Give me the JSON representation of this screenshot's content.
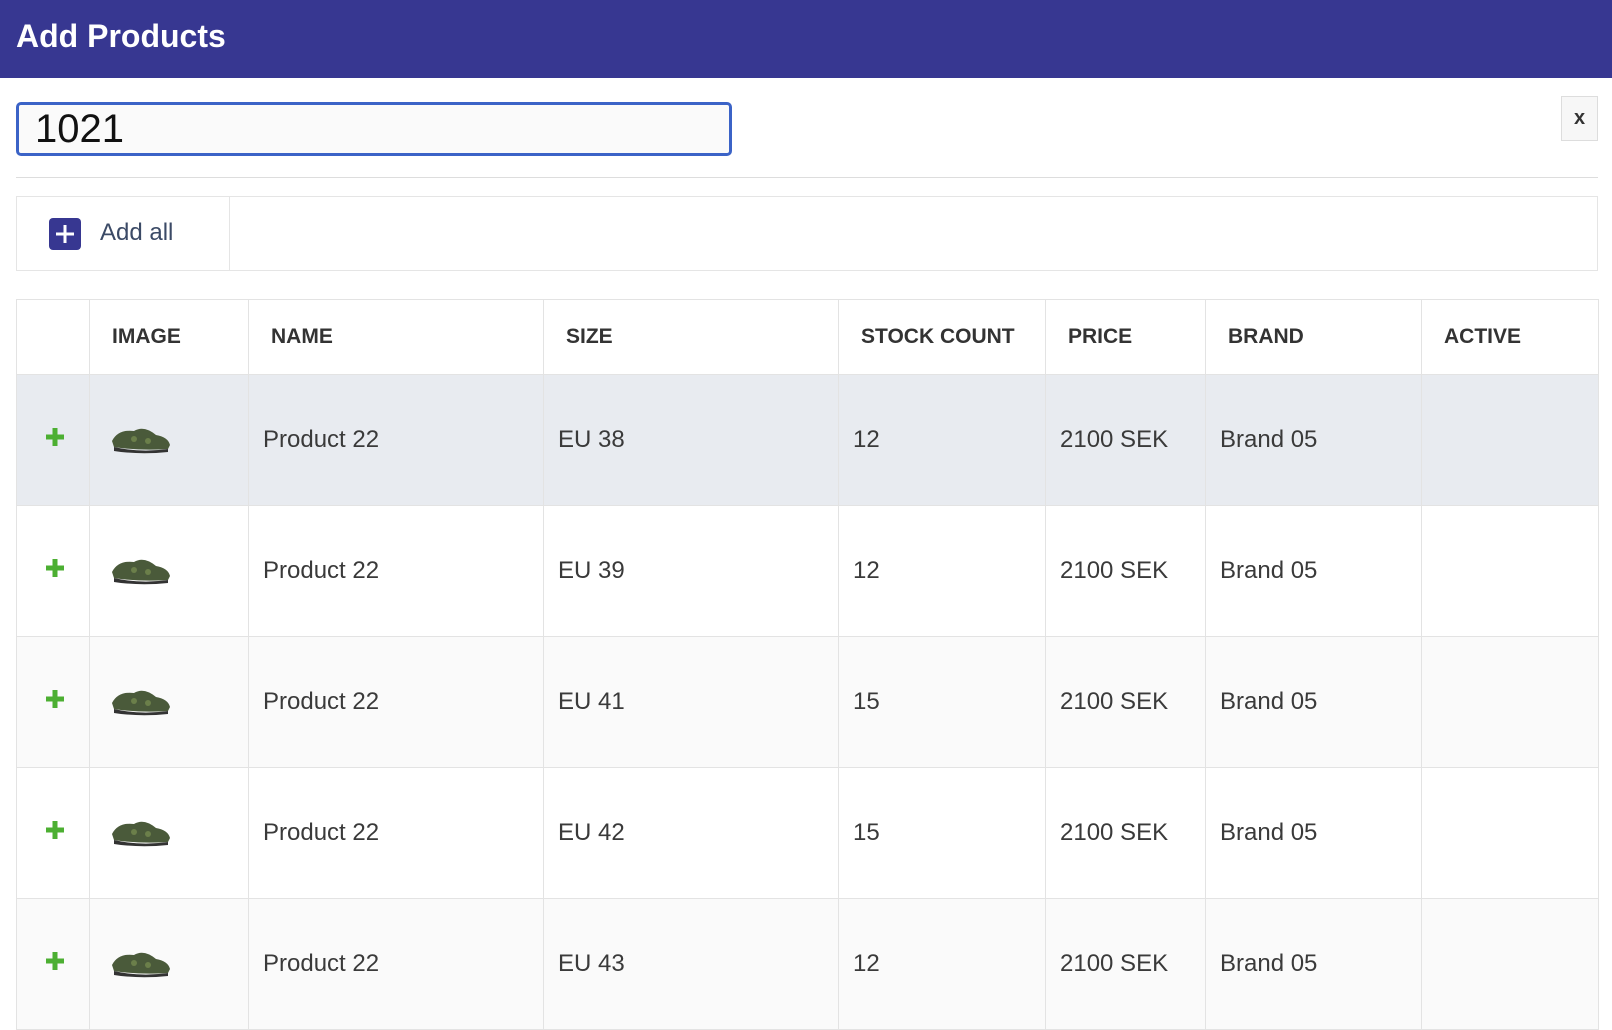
{
  "header": {
    "title": "Add Products"
  },
  "search": {
    "value": "1021",
    "close": "x"
  },
  "toolbar": {
    "add_all": "Add all"
  },
  "table": {
    "columns": [
      "IMAGE",
      "NAME",
      "SIZE",
      "STOCK COUNT",
      "PRICE",
      "BRAND",
      "ACTIVE"
    ],
    "rows": [
      {
        "name": "Product 22",
        "size": "EU 38",
        "stock": 12,
        "price": "2100 SEK",
        "brand": "Brand 05"
      },
      {
        "name": "Product 22",
        "size": "EU 39",
        "stock": 12,
        "price": "2100 SEK",
        "brand": "Brand 05"
      },
      {
        "name": "Product 22",
        "size": "EU 41",
        "stock": 15,
        "price": "2100 SEK",
        "brand": "Brand 05"
      },
      {
        "name": "Product 22",
        "size": "EU 42",
        "stock": 15,
        "price": "2100 SEK",
        "brand": "Brand 05"
      },
      {
        "name": "Product 22",
        "size": "EU 43",
        "stock": 12,
        "price": "2100 SEK",
        "brand": "Brand 05"
      }
    ]
  }
}
